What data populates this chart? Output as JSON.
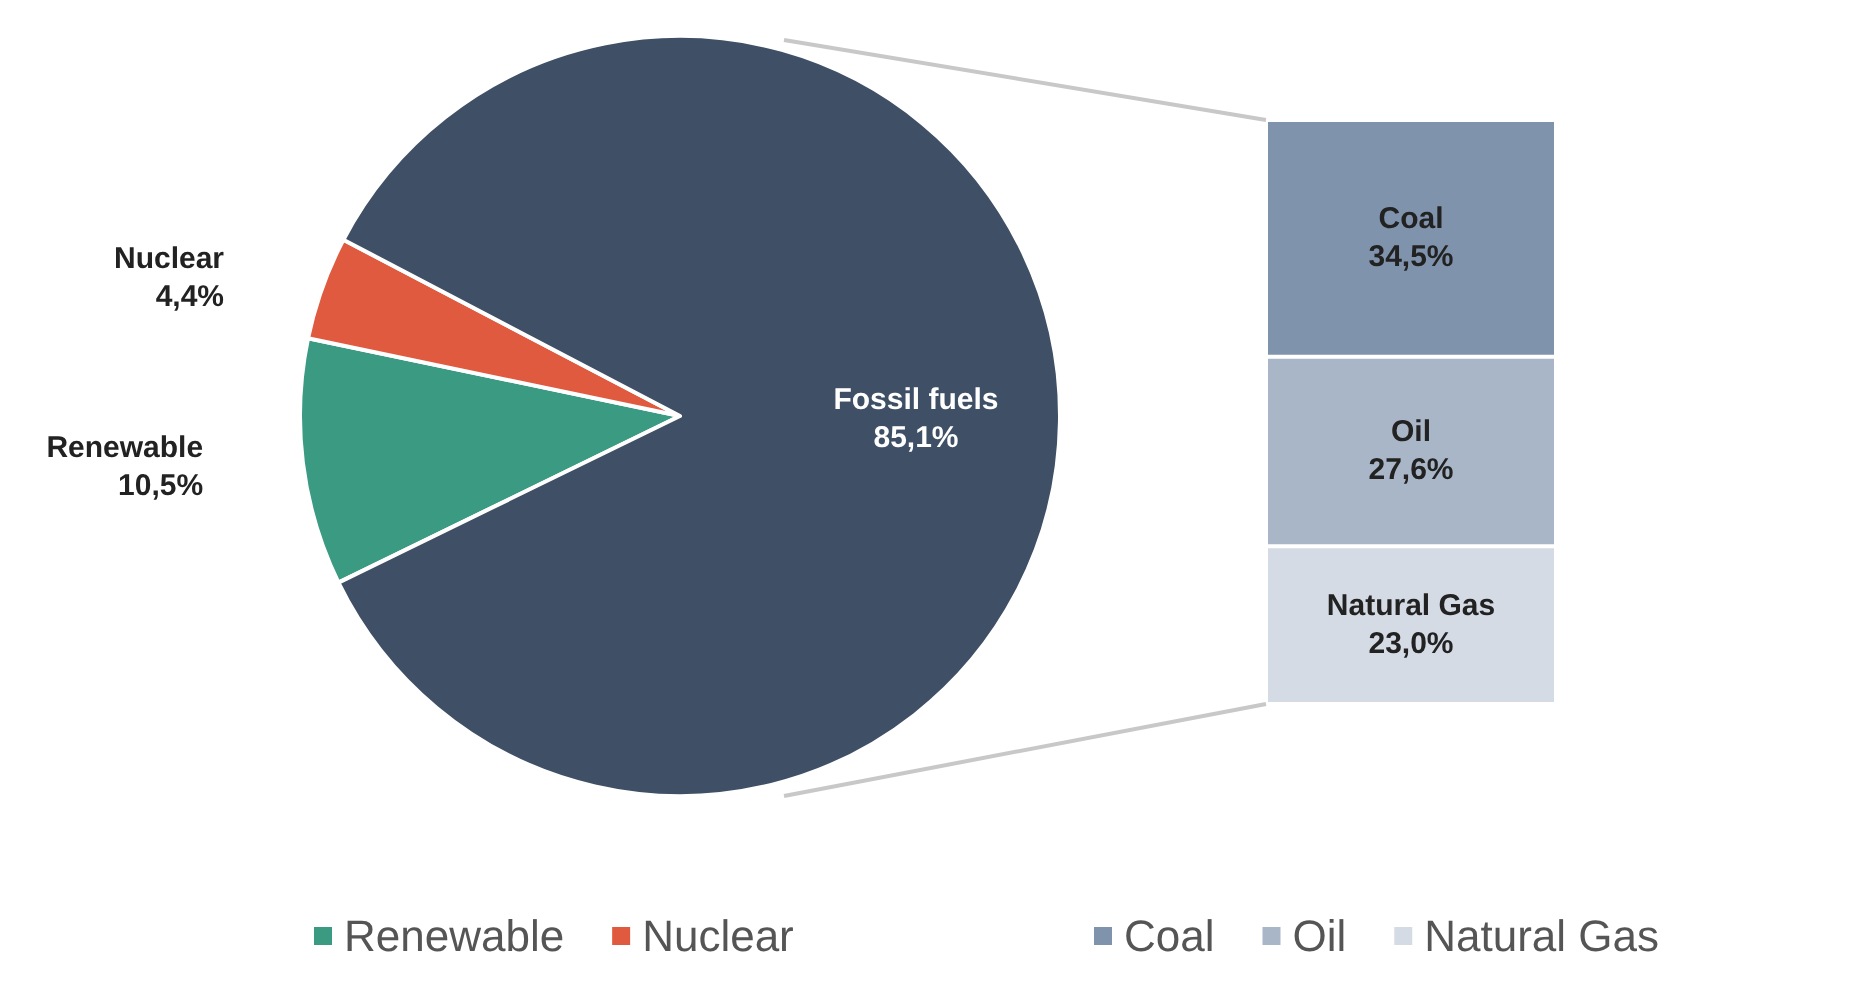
{
  "chart_data": [
    {
      "type": "pie",
      "categories": [
        "Renewable",
        "Nuclear",
        "Fossil fuels"
      ],
      "values": [
        10.5,
        4.4,
        85.1
      ],
      "colors": [
        "#3a9a82",
        "#e05a3f",
        "#3e4f66"
      ],
      "value_labels": [
        "10,5%",
        "4,4%",
        "85,1%"
      ],
      "legend": "bottom"
    },
    {
      "type": "bar",
      "stacked": true,
      "categories": [
        null
      ],
      "legend": "bottom",
      "ylim": [
        0,
        85.1
      ],
      "series": [
        {
          "name": "Natural Gas",
          "color": "#d5dbe5",
          "values": [
            23.0
          ],
          "value_labels": [
            "23,0%"
          ]
        },
        {
          "name": "Oil",
          "color": "#a9b6c8",
          "values": [
            27.6
          ],
          "value_labels": [
            "27,6%"
          ]
        },
        {
          "name": "Coal",
          "color": "#7f93ad",
          "values": [
            34.5
          ],
          "value_labels": [
            "34,5%"
          ]
        }
      ]
    }
  ]
}
